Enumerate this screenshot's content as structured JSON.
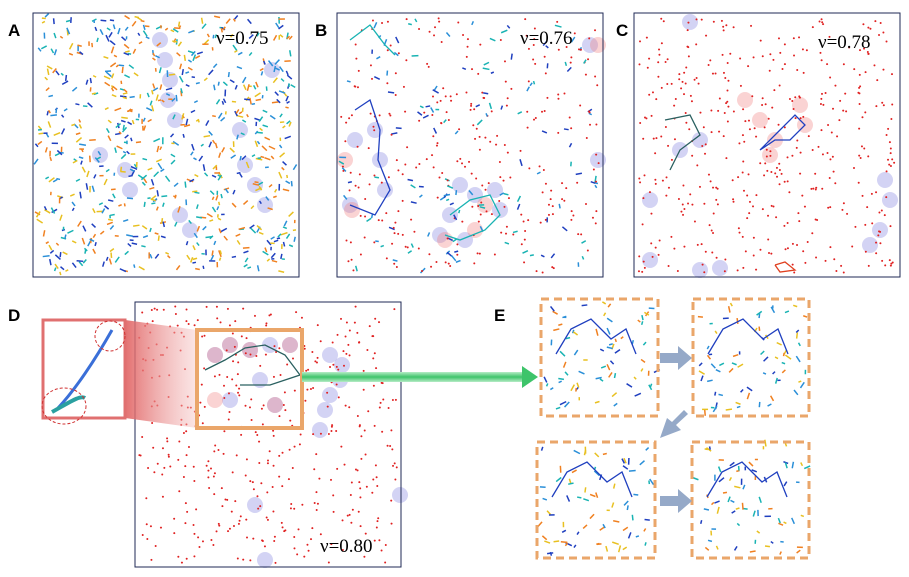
{
  "panels": [
    {
      "label": "A",
      "annotation": "ν=0.75"
    },
    {
      "label": "B",
      "annotation": "ν=0.76"
    },
    {
      "label": "C",
      "annotation": "ν=0.78"
    },
    {
      "label": "D",
      "annotation": "ν=0.80"
    }
  ],
  "panel_e": {
    "label": "E"
  }
}
